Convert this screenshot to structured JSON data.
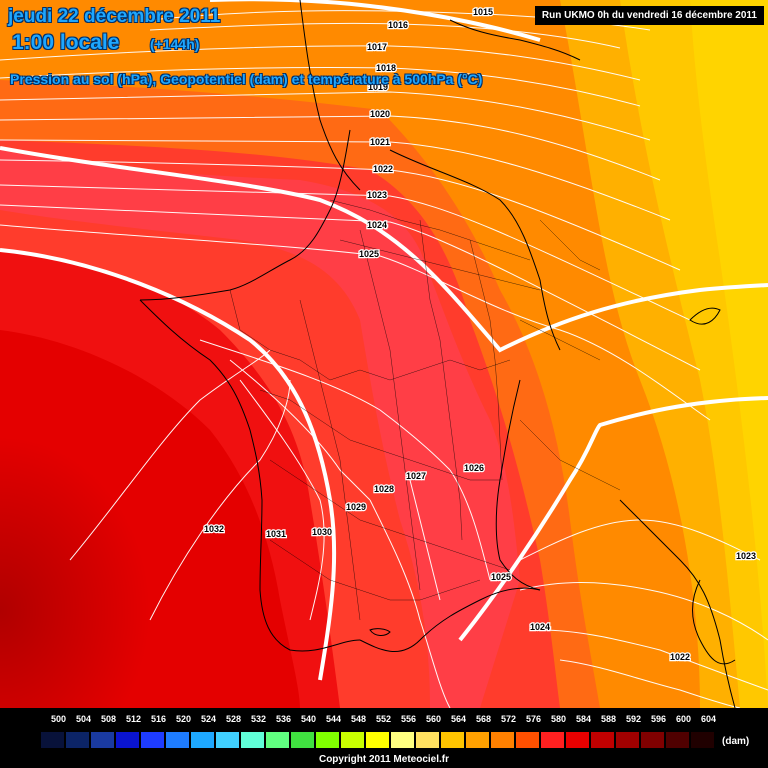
{
  "header": {
    "date": "jeudi 22 décembre 2011",
    "time": "1:00 locale",
    "lead": "(+144h)",
    "subtitle": "Pression au sol (hPa), Geopotentiel (dam) et température à 500hPa (°C)",
    "run": "Run UKMO 0h du vendredi 16 décembre 2011"
  },
  "map": {
    "region": "France and western Europe",
    "isobar_labels": [
      "1015",
      "1016",
      "1017",
      "1018",
      "1019",
      "1020",
      "1021",
      "1022",
      "1023",
      "1024",
      "1025",
      "1026",
      "1027",
      "1028",
      "1029",
      "1030",
      "1031",
      "1032",
      "1025",
      "1024",
      "1023",
      "1022"
    ],
    "geopotential_field_colors": [
      "#bf0000",
      "#e00000",
      "#ff1a00",
      "#ff3a3a",
      "#ff5a1e",
      "#ff7e00",
      "#ffa200",
      "#ffc400",
      "#ffd400"
    ]
  },
  "legend": {
    "values": [
      "500",
      "504",
      "508",
      "512",
      "516",
      "520",
      "524",
      "528",
      "532",
      "536",
      "540",
      "544",
      "548",
      "552",
      "556",
      "560",
      "564",
      "568",
      "572",
      "576",
      "580",
      "584",
      "588",
      "592",
      "596",
      "600",
      "604"
    ],
    "colors": [
      "#08123a",
      "#0c2466",
      "#1a3aa0",
      "#0a14d0",
      "#1e3cff",
      "#1e7cff",
      "#1ea8ff",
      "#40d0ff",
      "#60ffd8",
      "#60ff80",
      "#40e040",
      "#80ff00",
      "#c8ff00",
      "#ffff00",
      "#ffff80",
      "#ffe060",
      "#ffc400",
      "#ffa000",
      "#ff8000",
      "#ff5000",
      "#ff2020",
      "#e80000",
      "#c00000",
      "#a00000",
      "#800000",
      "#500000",
      "#200000"
    ],
    "unit": "(dam)",
    "copyright": "Copyright 2011 Meteociel.fr"
  }
}
